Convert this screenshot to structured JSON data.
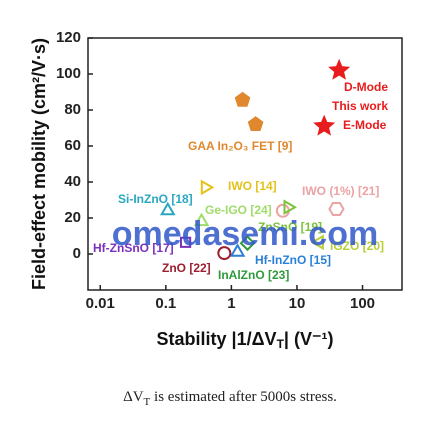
{
  "chart_data": {
    "type": "scatter",
    "y_label": "Field-effect mobility (cm²/V·s)",
    "x_label": [
      "Stability |1/ΔV",
      "T",
      "| (V⁻¹)"
    ],
    "xscale": "log",
    "xlim": [
      0.0065,
      400
    ],
    "ylim": [
      -20,
      120
    ],
    "xticks": [
      0.01,
      0.1,
      1,
      10,
      100
    ],
    "yticks": [
      0,
      20,
      40,
      60,
      80,
      100,
      120
    ],
    "annotations": [
      "This work"
    ],
    "watermark": "omedasemi.com",
    "caption": [
      "ΔV",
      "T",
      " is estimated after 5000s stress."
    ],
    "series": [
      {
        "name": "D-Mode",
        "color": "#e81c1c",
        "marker": [
          "star"
        ],
        "x": [
          44
        ],
        "values": [
          102
        ]
      },
      {
        "name": "E-Mode",
        "color": "#e81c1c",
        "marker": [
          "star"
        ],
        "x": [
          26
        ],
        "values": [
          71
        ]
      },
      {
        "name": "GAA In₂O₃ FET [9]",
        "color": "#e0882e",
        "marker": [
          "pentagon",
          "pentagon"
        ],
        "x": [
          1.48,
          2.34
        ],
        "values": [
          85.5,
          72
        ]
      },
      {
        "name": "IWO [14]",
        "color": "#e3c21c",
        "marker": [
          "tri-right"
        ],
        "x": [
          0.4
        ],
        "values": [
          37
        ]
      },
      {
        "name": "IWO (1%) [21]",
        "color": "#eba3a3",
        "marker": [
          "circle",
          "hexagon"
        ],
        "x": [
          6.1,
          40
        ],
        "values": [
          24,
          25
        ]
      },
      {
        "name": "ZnSnO [19]",
        "color": "#7cc23a",
        "marker": [
          "tri-right"
        ],
        "x": [
          7.3
        ],
        "values": [
          26
        ]
      },
      {
        "name": "Si-InZnO [18]",
        "color": "#2aa7c0",
        "marker": [
          "tri-up"
        ],
        "x": [
          0.107
        ],
        "values": [
          24
        ]
      },
      {
        "name": "Ge-IGO [24]",
        "color": "#9fdc6a",
        "marker": [
          "tri-up"
        ],
        "x": [
          0.35
        ],
        "values": [
          18
        ]
      },
      {
        "name": "Hf-ZnSnO [17]",
        "color": "#7b2fbf",
        "marker": [
          "square"
        ],
        "x": [
          0.2
        ],
        "values": [
          6.5
        ]
      },
      {
        "name": "IGZO [20]",
        "color": "#b9cf3a",
        "marker": [
          "tri-left"
        ],
        "x": [
          22
        ],
        "values": [
          6.5
        ]
      },
      {
        "name": "Hf-InZnO [15]",
        "color": "#2a7fd6",
        "marker": [
          "tri-up"
        ],
        "x": [
          1.24
        ],
        "values": [
          1
        ]
      },
      {
        "name": "ZnO [22]",
        "color": "#9b1f2f",
        "marker": [
          "circle"
        ],
        "x": [
          0.78
        ],
        "values": [
          0.5
        ]
      },
      {
        "name": "InAlZnO [23]",
        "color": "#2e9a3a",
        "marker": [
          "diamond"
        ],
        "x": [
          1.76
        ],
        "values": [
          6
        ]
      }
    ]
  }
}
